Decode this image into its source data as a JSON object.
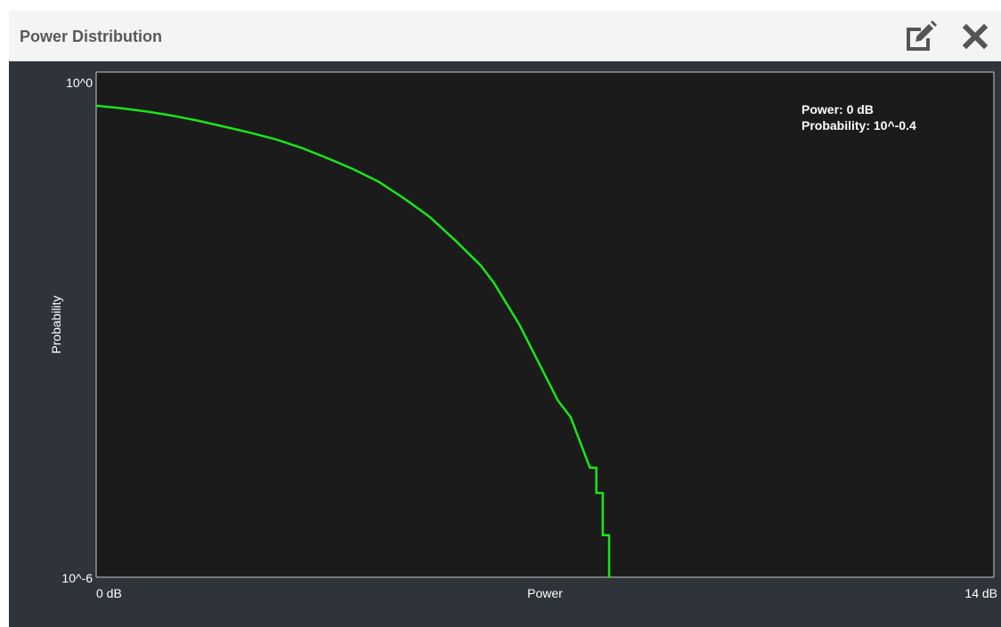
{
  "window": {
    "title": "Power Distribution",
    "edit_icon": "edit-icon",
    "close_icon": "close-icon"
  },
  "colors": {
    "plot_background": "#1b1b1b",
    "panel_background": "#2f333a",
    "curve": "#19e619",
    "axis_text": "#ffffff"
  },
  "chart_data": {
    "type": "line",
    "xlabel": "Power",
    "ylabel": "Probability",
    "x_unit": "dB",
    "xlim": [
      0,
      14
    ],
    "ylim_exponent": [
      -6,
      0
    ],
    "y_scale": "log",
    "x_tick_labels": [
      "0 dB",
      "14 dB"
    ],
    "y_tick_labels": [
      "10^0",
      "10^-6"
    ],
    "grid": false,
    "annotation": {
      "position": "top-right",
      "lines": [
        "Power: 0 dB",
        "Probability: 10^-0.4"
      ]
    },
    "series": [
      {
        "x": [
          0,
          0.4,
          0.8,
          1.2,
          1.6,
          2.0,
          2.4,
          2.8,
          3.2,
          3.6,
          4.0,
          4.4,
          4.8,
          5.2,
          5.6,
          6.0,
          6.2,
          6.4,
          6.6,
          6.8,
          7.0,
          7.2,
          7.4,
          7.5,
          7.6,
          7.7,
          7.8,
          7.8,
          7.9,
          7.9,
          8.0,
          8.0
        ],
        "y": [
          -0.4,
          -0.43,
          -0.47,
          -0.52,
          -0.58,
          -0.65,
          -0.72,
          -0.8,
          -0.9,
          -1.02,
          -1.15,
          -1.3,
          -1.5,
          -1.72,
          -2.0,
          -2.3,
          -2.5,
          -2.75,
          -3.0,
          -3.3,
          -3.6,
          -3.9,
          -4.1,
          -4.3,
          -4.5,
          -4.7,
          -4.7,
          -5.0,
          -5.0,
          -5.5,
          -5.5,
          -6.0
        ]
      }
    ]
  }
}
